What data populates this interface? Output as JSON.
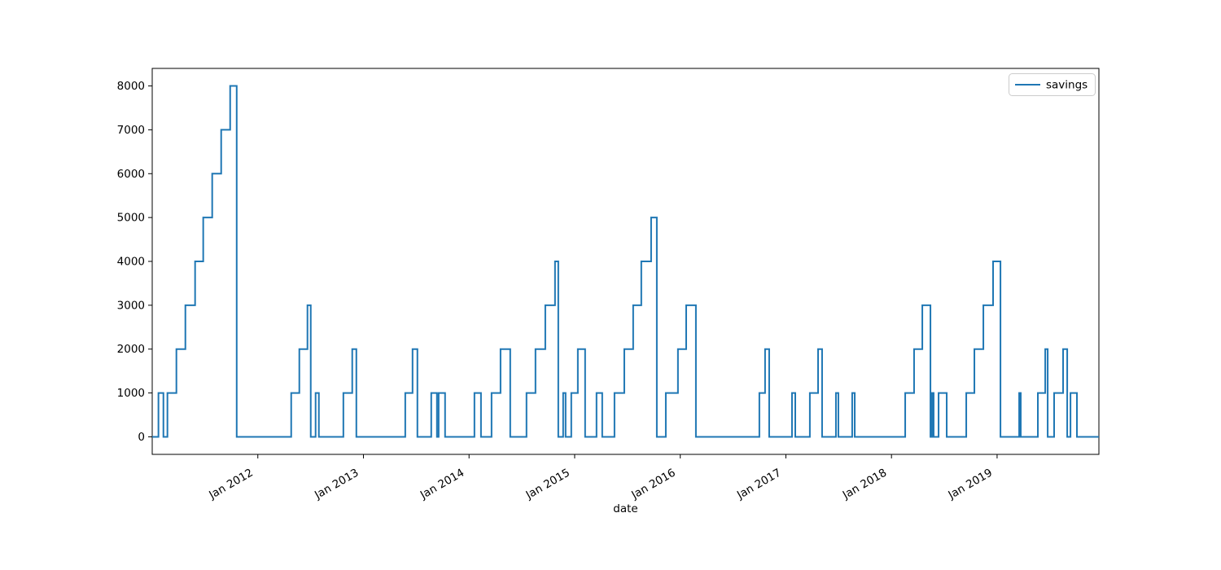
{
  "chart_data": {
    "type": "line",
    "step_mode": "post",
    "title": "",
    "xlabel": "date",
    "ylabel": "",
    "grid": false,
    "xlim": [
      2011.0,
      2019.964
    ],
    "ylim": [
      -400,
      8400
    ],
    "x_ticks": [
      {
        "t": 2012,
        "label": "Jan 2012"
      },
      {
        "t": 2013,
        "label": "Jan 2013"
      },
      {
        "t": 2014,
        "label": "Jan 2014"
      },
      {
        "t": 2015,
        "label": "Jan 2015"
      },
      {
        "t": 2016,
        "label": "Jan 2016"
      },
      {
        "t": 2017,
        "label": "Jan 2017"
      },
      {
        "t": 2018,
        "label": "Jan 2018"
      },
      {
        "t": 2019,
        "label": "Jan 2019"
      }
    ],
    "y_ticks": [
      {
        "v": 0,
        "label": "0"
      },
      {
        "v": 1000,
        "label": "1000"
      },
      {
        "v": 2000,
        "label": "2000"
      },
      {
        "v": 3000,
        "label": "3000"
      },
      {
        "v": 4000,
        "label": "4000"
      },
      {
        "v": 5000,
        "label": "5000"
      },
      {
        "v": 6000,
        "label": "6000"
      },
      {
        "v": 7000,
        "label": "7000"
      },
      {
        "v": 8000,
        "label": "8000"
      }
    ],
    "legend": {
      "position": "upper right",
      "edge_color": "#cccccc",
      "face_color": "#ffffff"
    },
    "axis_color": "#000000",
    "series": [
      {
        "name": "savings",
        "color": "#1f77b4",
        "line_width": 2,
        "steps": [
          [
            2011.0,
            0
          ],
          [
            2011.059,
            1000
          ],
          [
            2011.106,
            0
          ],
          [
            2011.144,
            1000
          ],
          [
            2011.229,
            2000
          ],
          [
            2011.314,
            3000
          ],
          [
            2011.406,
            4000
          ],
          [
            2011.483,
            5000
          ],
          [
            2011.568,
            6000
          ],
          [
            2011.653,
            7000
          ],
          [
            2011.738,
            8000
          ],
          [
            2011.8,
            0
          ],
          [
            2012.316,
            1000
          ],
          [
            2012.393,
            2000
          ],
          [
            2012.47,
            3000
          ],
          [
            2012.501,
            0
          ],
          [
            2012.547,
            1000
          ],
          [
            2012.578,
            0
          ],
          [
            2012.81,
            1000
          ],
          [
            2012.894,
            2000
          ],
          [
            2012.933,
            0
          ],
          [
            2013.396,
            1000
          ],
          [
            2013.465,
            2000
          ],
          [
            2013.511,
            0
          ],
          [
            2013.642,
            1000
          ],
          [
            2013.696,
            0
          ],
          [
            2013.712,
            1000
          ],
          [
            2013.773,
            0
          ],
          [
            2014.051,
            1000
          ],
          [
            2014.113,
            0
          ],
          [
            2014.213,
            1000
          ],
          [
            2014.298,
            2000
          ],
          [
            2014.39,
            0
          ],
          [
            2014.544,
            1000
          ],
          [
            2014.629,
            2000
          ],
          [
            2014.722,
            3000
          ],
          [
            2014.814,
            4000
          ],
          [
            2014.845,
            0
          ],
          [
            2014.891,
            1000
          ],
          [
            2014.914,
            0
          ],
          [
            2014.968,
            1000
          ],
          [
            2015.03,
            2000
          ],
          [
            2015.099,
            0
          ],
          [
            2015.207,
            1000
          ],
          [
            2015.261,
            0
          ],
          [
            2015.377,
            1000
          ],
          [
            2015.47,
            2000
          ],
          [
            2015.554,
            3000
          ],
          [
            2015.631,
            4000
          ],
          [
            2015.724,
            5000
          ],
          [
            2015.778,
            0
          ],
          [
            2015.863,
            1000
          ],
          [
            2015.978,
            2000
          ],
          [
            2016.056,
            3000
          ],
          [
            2016.148,
            0
          ],
          [
            2016.749,
            1000
          ],
          [
            2016.803,
            2000
          ],
          [
            2016.842,
            0
          ],
          [
            2017.058,
            1000
          ],
          [
            2017.089,
            0
          ],
          [
            2017.227,
            1000
          ],
          [
            2017.305,
            2000
          ],
          [
            2017.343,
            0
          ],
          [
            2017.474,
            1000
          ],
          [
            2017.497,
            0
          ],
          [
            2017.628,
            1000
          ],
          [
            2017.652,
            0
          ],
          [
            2018.13,
            1000
          ],
          [
            2018.214,
            2000
          ],
          [
            2018.292,
            3000
          ],
          [
            2018.369,
            0
          ],
          [
            2018.384,
            1000
          ],
          [
            2018.399,
            0
          ],
          [
            2018.446,
            1000
          ],
          [
            2018.523,
            0
          ],
          [
            2018.708,
            1000
          ],
          [
            2018.785,
            2000
          ],
          [
            2018.87,
            3000
          ],
          [
            2018.962,
            4000
          ],
          [
            2019.032,
            0
          ],
          [
            2019.209,
            1000
          ],
          [
            2019.224,
            0
          ],
          [
            2019.386,
            1000
          ],
          [
            2019.456,
            2000
          ],
          [
            2019.479,
            0
          ],
          [
            2019.54,
            1000
          ],
          [
            2019.625,
            2000
          ],
          [
            2019.664,
            0
          ],
          [
            2019.695,
            1000
          ],
          [
            2019.756,
            0
          ]
        ]
      }
    ]
  }
}
